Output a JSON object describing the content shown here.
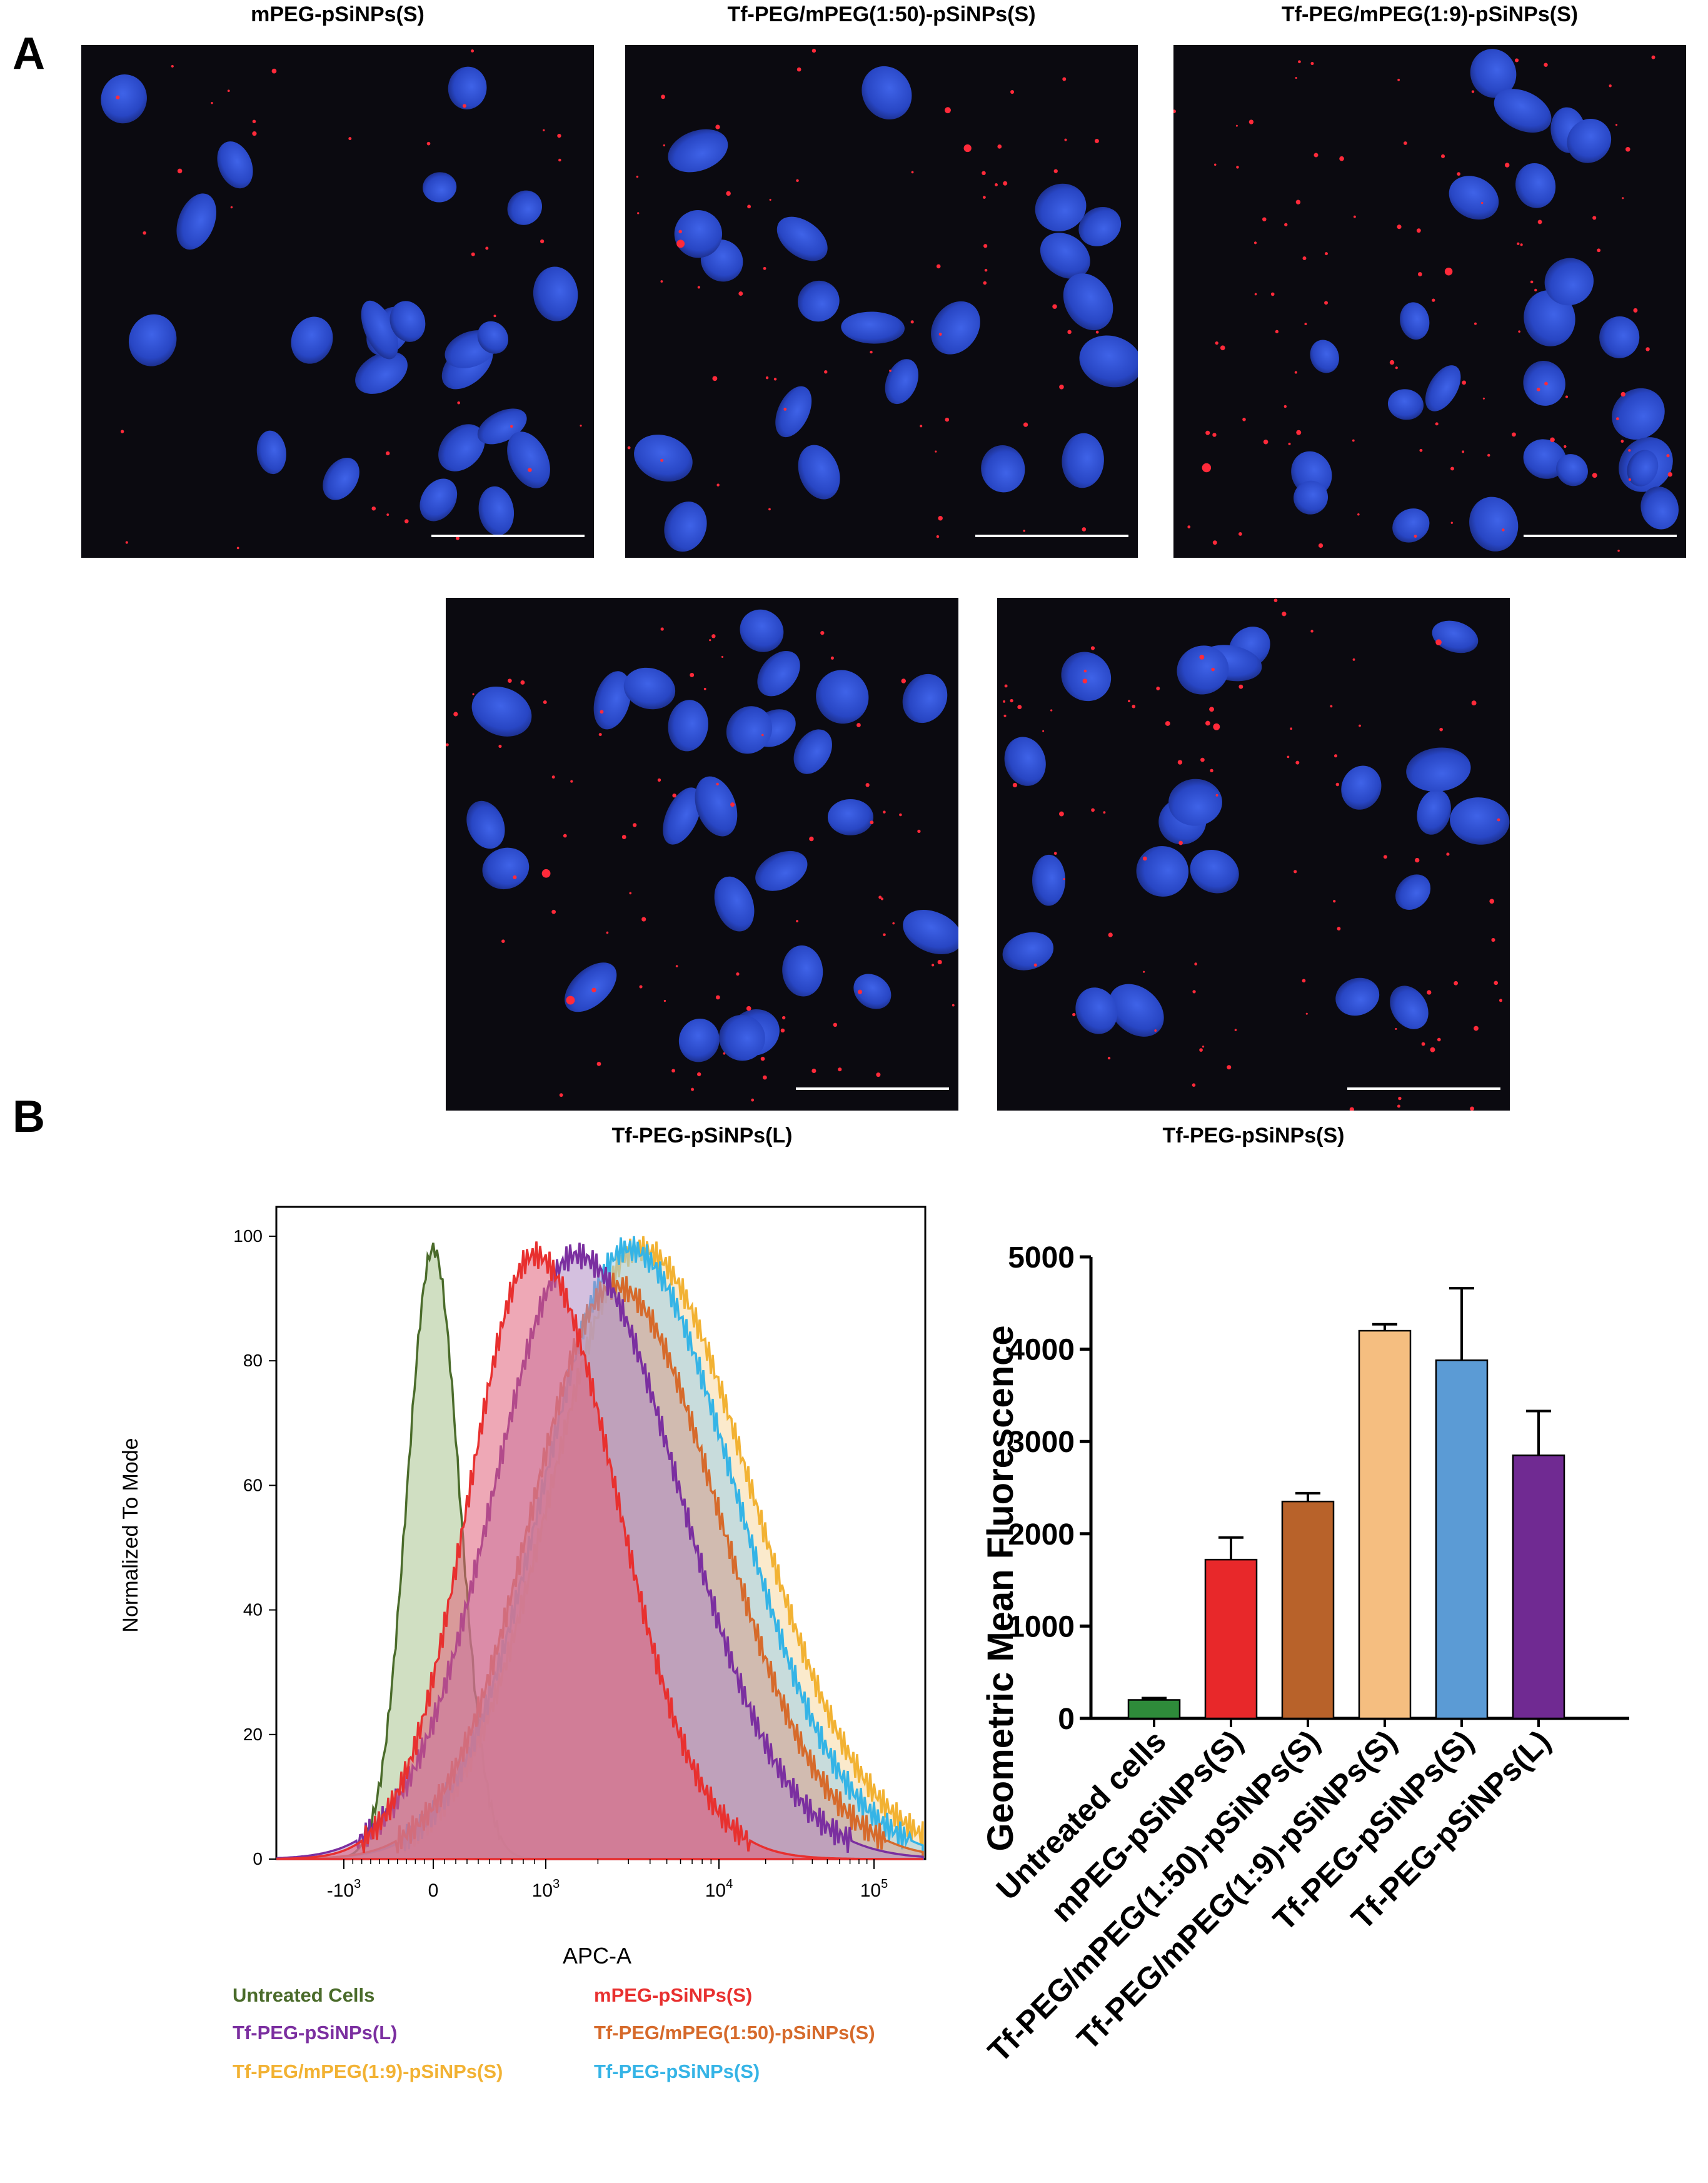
{
  "panels": {
    "a_label": "A",
    "b_label": "B"
  },
  "micrographs": {
    "top": [
      {
        "title": "mPEG-pSiNPs(S)",
        "red_density": 0.15,
        "seed": 11
      },
      {
        "title": "Tf-PEG/mPEG(1:50)-pSiNPs(S)",
        "red_density": 0.45,
        "seed": 23
      },
      {
        "title": "Tf-PEG/mPEG(1:9)-pSiNPs(S)",
        "red_density": 0.85,
        "seed": 37
      }
    ],
    "bottom": [
      {
        "title": "Tf-PEG-pSiNPs(L)",
        "red_density": 0.6,
        "seed": 41
      },
      {
        "title": "Tf-PEG-pSiNPs(S)",
        "red_density": 0.7,
        "seed": 53
      }
    ]
  },
  "flow": {
    "ylabel": "Normalized To Mode",
    "xlabel": "APC-A",
    "y_ticks": [
      "0",
      "20",
      "40",
      "60",
      "80",
      "100"
    ],
    "x_ticks": [
      {
        "base": "-10",
        "exp": "3"
      },
      {
        "base": "0",
        "exp": ""
      },
      {
        "base": "10",
        "exp": "3"
      },
      {
        "base": "10",
        "exp": "4"
      },
      {
        "base": "10",
        "exp": "5"
      }
    ],
    "legend": [
      {
        "label": "Untreated Cells",
        "color": "#4a6b2a"
      },
      {
        "label": "mPEG-pSiNPs(S)",
        "color": "#e8302f"
      },
      {
        "label": "Tf-PEG-pSiNPs(L)",
        "color": "#7b2fa0"
      },
      {
        "label": "Tf-PEG/mPEG(1:50)-pSiNPs(S)",
        "color": "#d66a2b"
      },
      {
        "label": "Tf-PEG/mPEG(1:9)-pSiNPs(S)",
        "color": "#f2b233"
      },
      {
        "label": "Tf-PEG-pSiNPs(S)",
        "color": "#35b4e6"
      }
    ]
  },
  "chart_data": [
    {
      "type": "area",
      "xlabel": "APC-A",
      "ylabel": "Normalized To Mode",
      "xscale": "biexponential",
      "ylim": [
        0,
        100
      ],
      "series": [
        {
          "name": "Untreated Cells",
          "color": "#4a6b2a",
          "fill": "#a9c490",
          "peak_x": 0,
          "peak_y": 98,
          "width": 0.22,
          "points": [
            [
              -1000,
              0
            ],
            [
              -300,
              12
            ],
            [
              0,
              98
            ],
            [
              300,
              40
            ],
            [
              1000,
              2
            ]
          ]
        },
        {
          "name": "mPEG-pSiNPs(S)",
          "color": "#e8302f",
          "fill": "#e0607a",
          "peak_x": 900,
          "peak_y": 97,
          "width": 0.55,
          "points": [
            [
              300,
              0
            ],
            [
              600,
              75
            ],
            [
              900,
              97
            ],
            [
              2000,
              80
            ],
            [
              5000,
              28
            ],
            [
              10000,
              10
            ],
            [
              30000,
              0
            ]
          ]
        },
        {
          "name": "Tf-PEG-pSiNPs(L)",
          "color": "#7b2fa0",
          "fill": "#b08cc4",
          "peak_x": 1500,
          "peak_y": 97,
          "width": 0.7,
          "points": [
            [
              400,
              0
            ],
            [
              800,
              70
            ],
            [
              1500,
              97
            ],
            [
              4000,
              88
            ],
            [
              10000,
              35
            ],
            [
              30000,
              3
            ]
          ]
        },
        {
          "name": "Tf-PEG/mPEG(1:50)-pSiNPs(S)",
          "color": "#d66a2b",
          "fill": "#d8a08c",
          "peak_x": 2500,
          "peak_y": 92,
          "width": 0.7,
          "points": [
            [
              500,
              0
            ],
            [
              1200,
              60
            ],
            [
              2500,
              92
            ],
            [
              6000,
              75
            ],
            [
              15000,
              25
            ],
            [
              40000,
              0
            ]
          ]
        },
        {
          "name": "Tf-PEG/mPEG(1:9)-pSiNPs(S)",
          "color": "#f2b233",
          "fill": "#f7d9a2",
          "peak_x": 3500,
          "peak_y": 98,
          "width": 0.75,
          "points": [
            [
              800,
              0
            ],
            [
              2000,
              80
            ],
            [
              3500,
              98
            ],
            [
              8000,
              80
            ],
            [
              20000,
              25
            ],
            [
              50000,
              0
            ]
          ]
        },
        {
          "name": "Tf-PEG-pSiNPs(S)",
          "color": "#35b4e6",
          "fill": "#9fd0ea",
          "peak_x": 3000,
          "peak_y": 98,
          "width": 0.72,
          "points": [
            [
              600,
              0
            ],
            [
              1500,
              75
            ],
            [
              3000,
              98
            ],
            [
              7000,
              78
            ],
            [
              18000,
              20
            ],
            [
              45000,
              0
            ]
          ]
        }
      ]
    },
    {
      "type": "bar",
      "ylabel": "Geometric Mean Fluorescence",
      "ylim": [
        0,
        5000
      ],
      "yticks": [
        0,
        1000,
        2000,
        3000,
        4000,
        5000
      ],
      "categories": [
        "Untreated cells",
        "mPEG-pSiNPs(S)",
        "Tf-PEG/mPEG(1:50)-pSiNPs(S)",
        "Tf-PEG/mPEG(1:9)-pSiNPs(S)",
        "Tf-PEG-pSiNPs(S)",
        "Tf-PEG-pSiNPs(L)"
      ],
      "values": [
        200,
        1720,
        2350,
        4200,
        3880,
        2850
      ],
      "errors": [
        20,
        240,
        90,
        70,
        780,
        480
      ],
      "colors": [
        "#2e8b3a",
        "#e8282a",
        "#b8622a",
        "#f5be80",
        "#5b9bd5",
        "#702a92"
      ]
    }
  ]
}
